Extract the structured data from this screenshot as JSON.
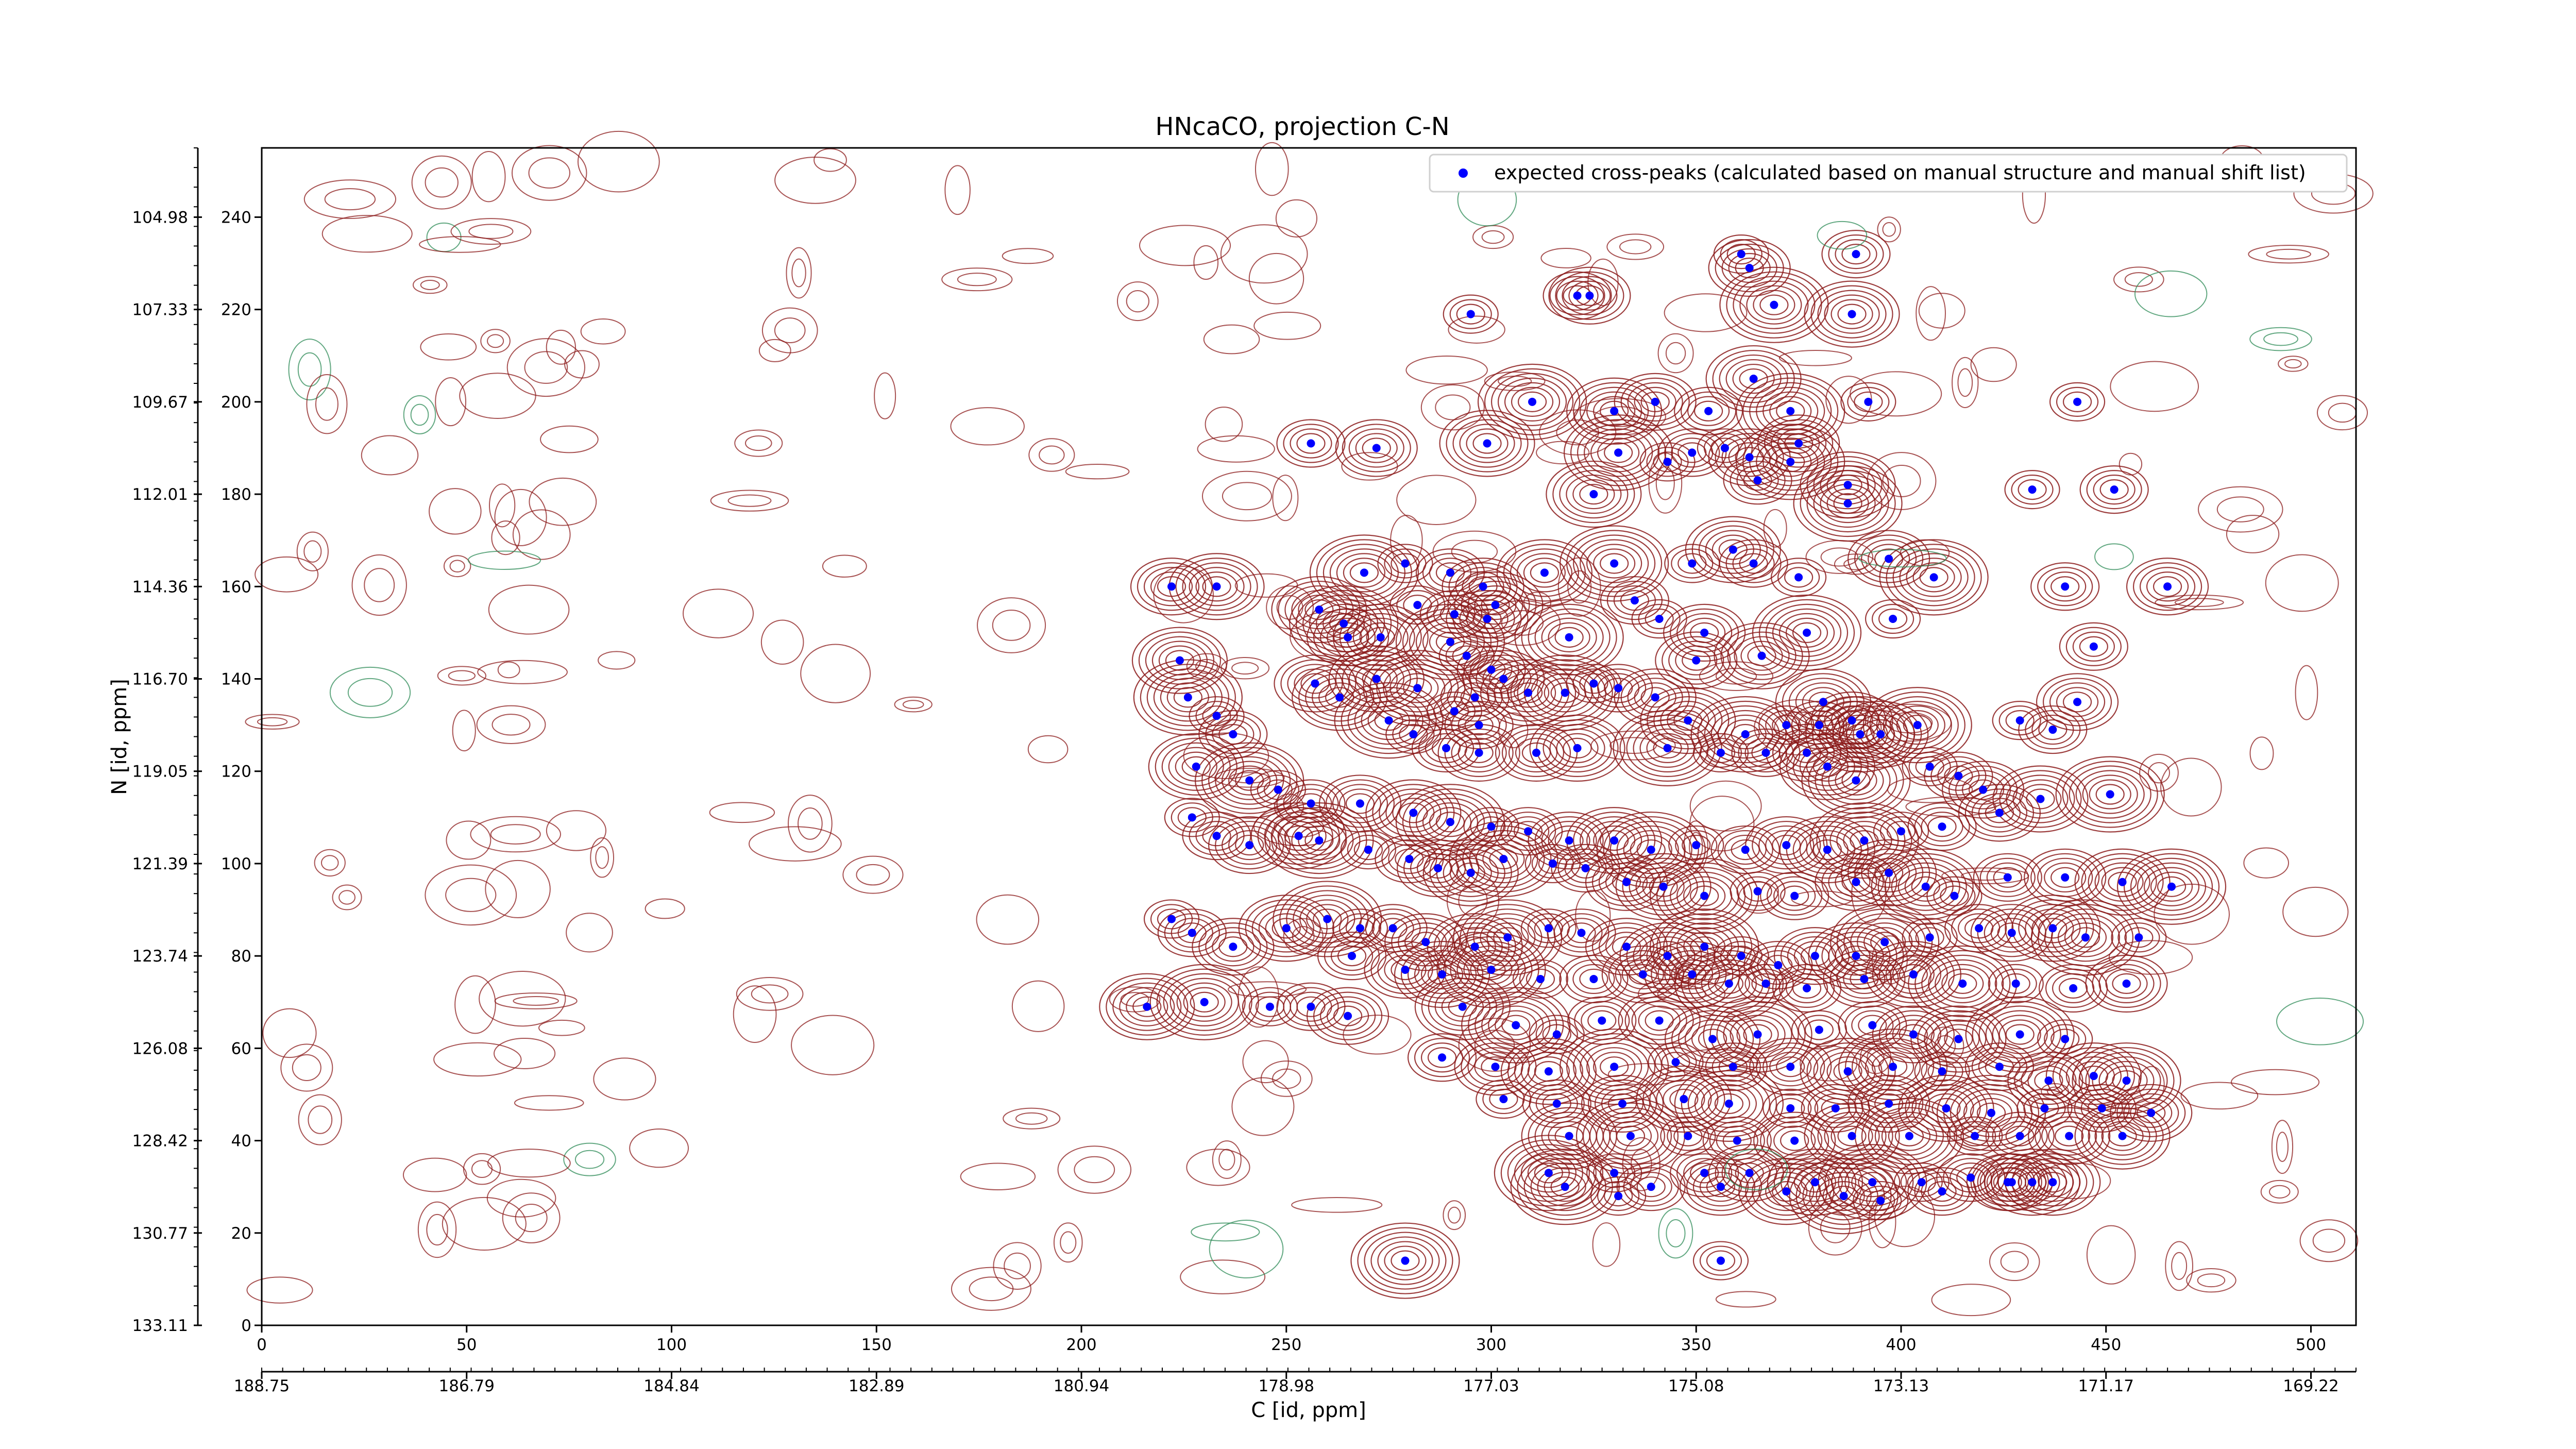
{
  "chart_data": {
    "type": "scatter",
    "title": "HNcaCO, projection C-N",
    "xlabel": "C [id, ppm]",
    "ylabel": "N [id, ppm]",
    "xlim": [
      0,
      511
    ],
    "ylim": [
      0,
      255
    ],
    "x_ticks": [
      0,
      50,
      100,
      150,
      200,
      250,
      300,
      350,
      400,
      450,
      500
    ],
    "x_ppm_ticks": [
      "188.75",
      "186.79",
      "184.84",
      "182.89",
      "180.94",
      "178.98",
      "177.03",
      "175.08",
      "173.13",
      "171.17",
      "169.22"
    ],
    "y_ticks": [
      0,
      20,
      40,
      60,
      80,
      100,
      120,
      140,
      160,
      180,
      200,
      220,
      240
    ],
    "y_ppm_ticks": [
      "133.11",
      "130.77",
      "128.42",
      "126.08",
      "123.74",
      "121.39",
      "119.05",
      "116.70",
      "114.36",
      "112.01",
      "109.67",
      "107.33",
      "104.98"
    ],
    "legend": {
      "label": "expected cross-peaks (calculated based on manual structure and manual shift list)",
      "placement": "top-right"
    },
    "colors": {
      "positive_contour": "#8b1a1a",
      "negative_contour": "#2e8b57",
      "peak_marker": "#0000ff",
      "axes": "#000000"
    },
    "series": [
      {
        "name": "expected cross-peaks (calculated based on manual structure and manual shift list)",
        "points": [
          [
            361,
            232
          ],
          [
            389,
            232
          ],
          [
            363,
            229
          ],
          [
            388,
            219
          ],
          [
            369,
            221
          ],
          [
            295,
            219
          ],
          [
            321,
            223
          ],
          [
            324,
            223
          ],
          [
            364,
            205
          ],
          [
            373,
            198
          ],
          [
            392,
            200
          ],
          [
            353,
            198
          ],
          [
            340,
            200
          ],
          [
            330,
            198
          ],
          [
            310,
            200
          ],
          [
            443,
            200
          ],
          [
            256,
            191
          ],
          [
            272,
            190
          ],
          [
            299,
            191
          ],
          [
            331,
            189
          ],
          [
            343,
            187
          ],
          [
            349,
            189
          ],
          [
            375,
            191
          ],
          [
            325,
            180
          ],
          [
            387,
            178
          ],
          [
            432,
            181
          ],
          [
            452,
            181
          ],
          [
            363,
            188
          ],
          [
            387,
            182
          ],
          [
            373,
            187
          ],
          [
            357,
            190
          ],
          [
            365,
            183
          ],
          [
            222,
            160
          ],
          [
            233,
            160
          ],
          [
            269,
            163
          ],
          [
            279,
            165
          ],
          [
            290,
            163
          ],
          [
            298,
            160
          ],
          [
            313,
            163
          ],
          [
            330,
            165
          ],
          [
            349,
            165
          ],
          [
            364,
            165
          ],
          [
            397,
            166
          ],
          [
            359,
            168
          ],
          [
            408,
            162
          ],
          [
            375,
            162
          ],
          [
            440,
            160
          ],
          [
            465,
            160
          ],
          [
            258,
            155
          ],
          [
            264,
            152
          ],
          [
            282,
            156
          ],
          [
            291,
            154
          ],
          [
            299,
            153
          ],
          [
            301,
            156
          ],
          [
            319,
            149
          ],
          [
            341,
            153
          ],
          [
            335,
            157
          ],
          [
            352,
            150
          ],
          [
            366,
            145
          ],
          [
            377,
            150
          ],
          [
            398,
            153
          ],
          [
            447,
            147
          ],
          [
            265,
            149
          ],
          [
            273,
            149
          ],
          [
            290,
            148
          ],
          [
            294,
            145
          ],
          [
            300,
            142
          ],
          [
            303,
            140
          ],
          [
            309,
            137
          ],
          [
            318,
            137
          ],
          [
            325,
            139
          ],
          [
            331,
            138
          ],
          [
            340,
            136
          ],
          [
            348,
            131
          ],
          [
            362,
            128
          ],
          [
            372,
            130
          ],
          [
            380,
            130
          ],
          [
            388,
            131
          ],
          [
            395,
            128
          ],
          [
            404,
            130
          ],
          [
            429,
            131
          ],
          [
            437,
            129
          ],
          [
            443,
            135
          ],
          [
            272,
            140
          ],
          [
            282,
            138
          ],
          [
            291,
            133
          ],
          [
            297,
            130
          ],
          [
            311,
            124
          ],
          [
            321,
            125
          ],
          [
            343,
            125
          ],
          [
            356,
            124
          ],
          [
            367,
            124
          ],
          [
            377,
            124
          ],
          [
            382,
            121
          ],
          [
            389,
            118
          ],
          [
            407,
            121
          ],
          [
            414,
            119
          ],
          [
            420,
            116
          ],
          [
            224,
            144
          ],
          [
            226,
            136
          ],
          [
            233,
            132
          ],
          [
            237,
            128
          ],
          [
            257,
            139
          ],
          [
            263,
            136
          ],
          [
            275,
            131
          ],
          [
            281,
            128
          ],
          [
            289,
            125
          ],
          [
            297,
            124
          ],
          [
            228,
            121
          ],
          [
            241,
            118
          ],
          [
            248,
            116
          ],
          [
            256,
            113
          ],
          [
            268,
            113
          ],
          [
            281,
            111
          ],
          [
            290,
            109
          ],
          [
            300,
            108
          ],
          [
            309,
            107
          ],
          [
            319,
            105
          ],
          [
            330,
            105
          ],
          [
            339,
            103
          ],
          [
            350,
            104
          ],
          [
            362,
            103
          ],
          [
            372,
            104
          ],
          [
            382,
            103
          ],
          [
            391,
            105
          ],
          [
            400,
            107
          ],
          [
            410,
            108
          ],
          [
            424,
            111
          ],
          [
            434,
            114
          ],
          [
            451,
            115
          ],
          [
            227,
            110
          ],
          [
            233,
            106
          ],
          [
            241,
            104
          ],
          [
            253,
            106
          ],
          [
            258,
            105
          ],
          [
            270,
            103
          ],
          [
            280,
            101
          ],
          [
            287,
            99
          ],
          [
            295,
            98
          ],
          [
            303,
            101
          ],
          [
            315,
            100
          ],
          [
            323,
            99
          ],
          [
            333,
            96
          ],
          [
            342,
            95
          ],
          [
            352,
            93
          ],
          [
            365,
            94
          ],
          [
            374,
            93
          ],
          [
            389,
            96
          ],
          [
            397,
            98
          ],
          [
            406,
            95
          ],
          [
            413,
            93
          ],
          [
            426,
            97
          ],
          [
            440,
            97
          ],
          [
            454,
            96
          ],
          [
            466,
            95
          ],
          [
            222,
            88
          ],
          [
            227,
            85
          ],
          [
            237,
            82
          ],
          [
            250,
            86
          ],
          [
            260,
            88
          ],
          [
            268,
            86
          ],
          [
            276,
            86
          ],
          [
            284,
            83
          ],
          [
            296,
            82
          ],
          [
            304,
            84
          ],
          [
            314,
            86
          ],
          [
            322,
            85
          ],
          [
            333,
            82
          ],
          [
            343,
            80
          ],
          [
            352,
            82
          ],
          [
            361,
            80
          ],
          [
            370,
            78
          ],
          [
            379,
            80
          ],
          [
            389,
            80
          ],
          [
            396,
            83
          ],
          [
            407,
            84
          ],
          [
            419,
            86
          ],
          [
            427,
            85
          ],
          [
            437,
            86
          ],
          [
            445,
            84
          ],
          [
            458,
            84
          ],
          [
            266,
            80
          ],
          [
            279,
            77
          ],
          [
            288,
            76
          ],
          [
            300,
            77
          ],
          [
            312,
            75
          ],
          [
            325,
            75
          ],
          [
            337,
            76
          ],
          [
            349,
            76
          ],
          [
            358,
            74
          ],
          [
            367,
            74
          ],
          [
            377,
            73
          ],
          [
            391,
            75
          ],
          [
            403,
            76
          ],
          [
            415,
            74
          ],
          [
            428,
            74
          ],
          [
            442,
            73
          ],
          [
            455,
            74
          ],
          [
            216,
            69
          ],
          [
            230,
            70
          ],
          [
            246,
            69
          ],
          [
            256,
            69
          ],
          [
            265,
            67
          ],
          [
            293,
            69
          ],
          [
            306,
            65
          ],
          [
            316,
            63
          ],
          [
            327,
            66
          ],
          [
            341,
            66
          ],
          [
            354,
            62
          ],
          [
            365,
            63
          ],
          [
            380,
            64
          ],
          [
            393,
            65
          ],
          [
            403,
            63
          ],
          [
            414,
            62
          ],
          [
            429,
            63
          ],
          [
            440,
            62
          ],
          [
            288,
            58
          ],
          [
            301,
            56
          ],
          [
            314,
            55
          ],
          [
            330,
            56
          ],
          [
            345,
            57
          ],
          [
            359,
            56
          ],
          [
            373,
            56
          ],
          [
            387,
            55
          ],
          [
            398,
            56
          ],
          [
            410,
            55
          ],
          [
            424,
            56
          ],
          [
            436,
            53
          ],
          [
            447,
            54
          ],
          [
            455,
            53
          ],
          [
            303,
            49
          ],
          [
            316,
            48
          ],
          [
            332,
            48
          ],
          [
            347,
            49
          ],
          [
            358,
            48
          ],
          [
            373,
            47
          ],
          [
            384,
            47
          ],
          [
            397,
            48
          ],
          [
            411,
            47
          ],
          [
            422,
            46
          ],
          [
            435,
            47
          ],
          [
            449,
            47
          ],
          [
            461,
            46
          ],
          [
            319,
            41
          ],
          [
            334,
            41
          ],
          [
            348,
            41
          ],
          [
            360,
            40
          ],
          [
            374,
            40
          ],
          [
            388,
            41
          ],
          [
            402,
            41
          ],
          [
            418,
            41
          ],
          [
            429,
            41
          ],
          [
            441,
            41
          ],
          [
            454,
            41
          ],
          [
            314,
            33
          ],
          [
            330,
            33
          ],
          [
            352,
            33
          ],
          [
            363,
            33
          ],
          [
            379,
            31
          ],
          [
            393,
            31
          ],
          [
            405,
            31
          ],
          [
            417,
            32
          ],
          [
            427,
            31
          ],
          [
            437,
            31
          ],
          [
            318,
            30
          ],
          [
            331,
            28
          ],
          [
            339,
            30
          ],
          [
            356,
            30
          ],
          [
            372,
            29
          ],
          [
            386,
            28
          ],
          [
            395,
            27
          ],
          [
            410,
            29
          ],
          [
            426,
            31
          ],
          [
            432,
            31
          ],
          [
            279,
            14
          ],
          [
            356,
            14
          ],
          [
            296,
            136
          ],
          [
            350,
            144
          ],
          [
            381,
            135
          ],
          [
            390,
            128
          ]
        ]
      }
    ]
  }
}
